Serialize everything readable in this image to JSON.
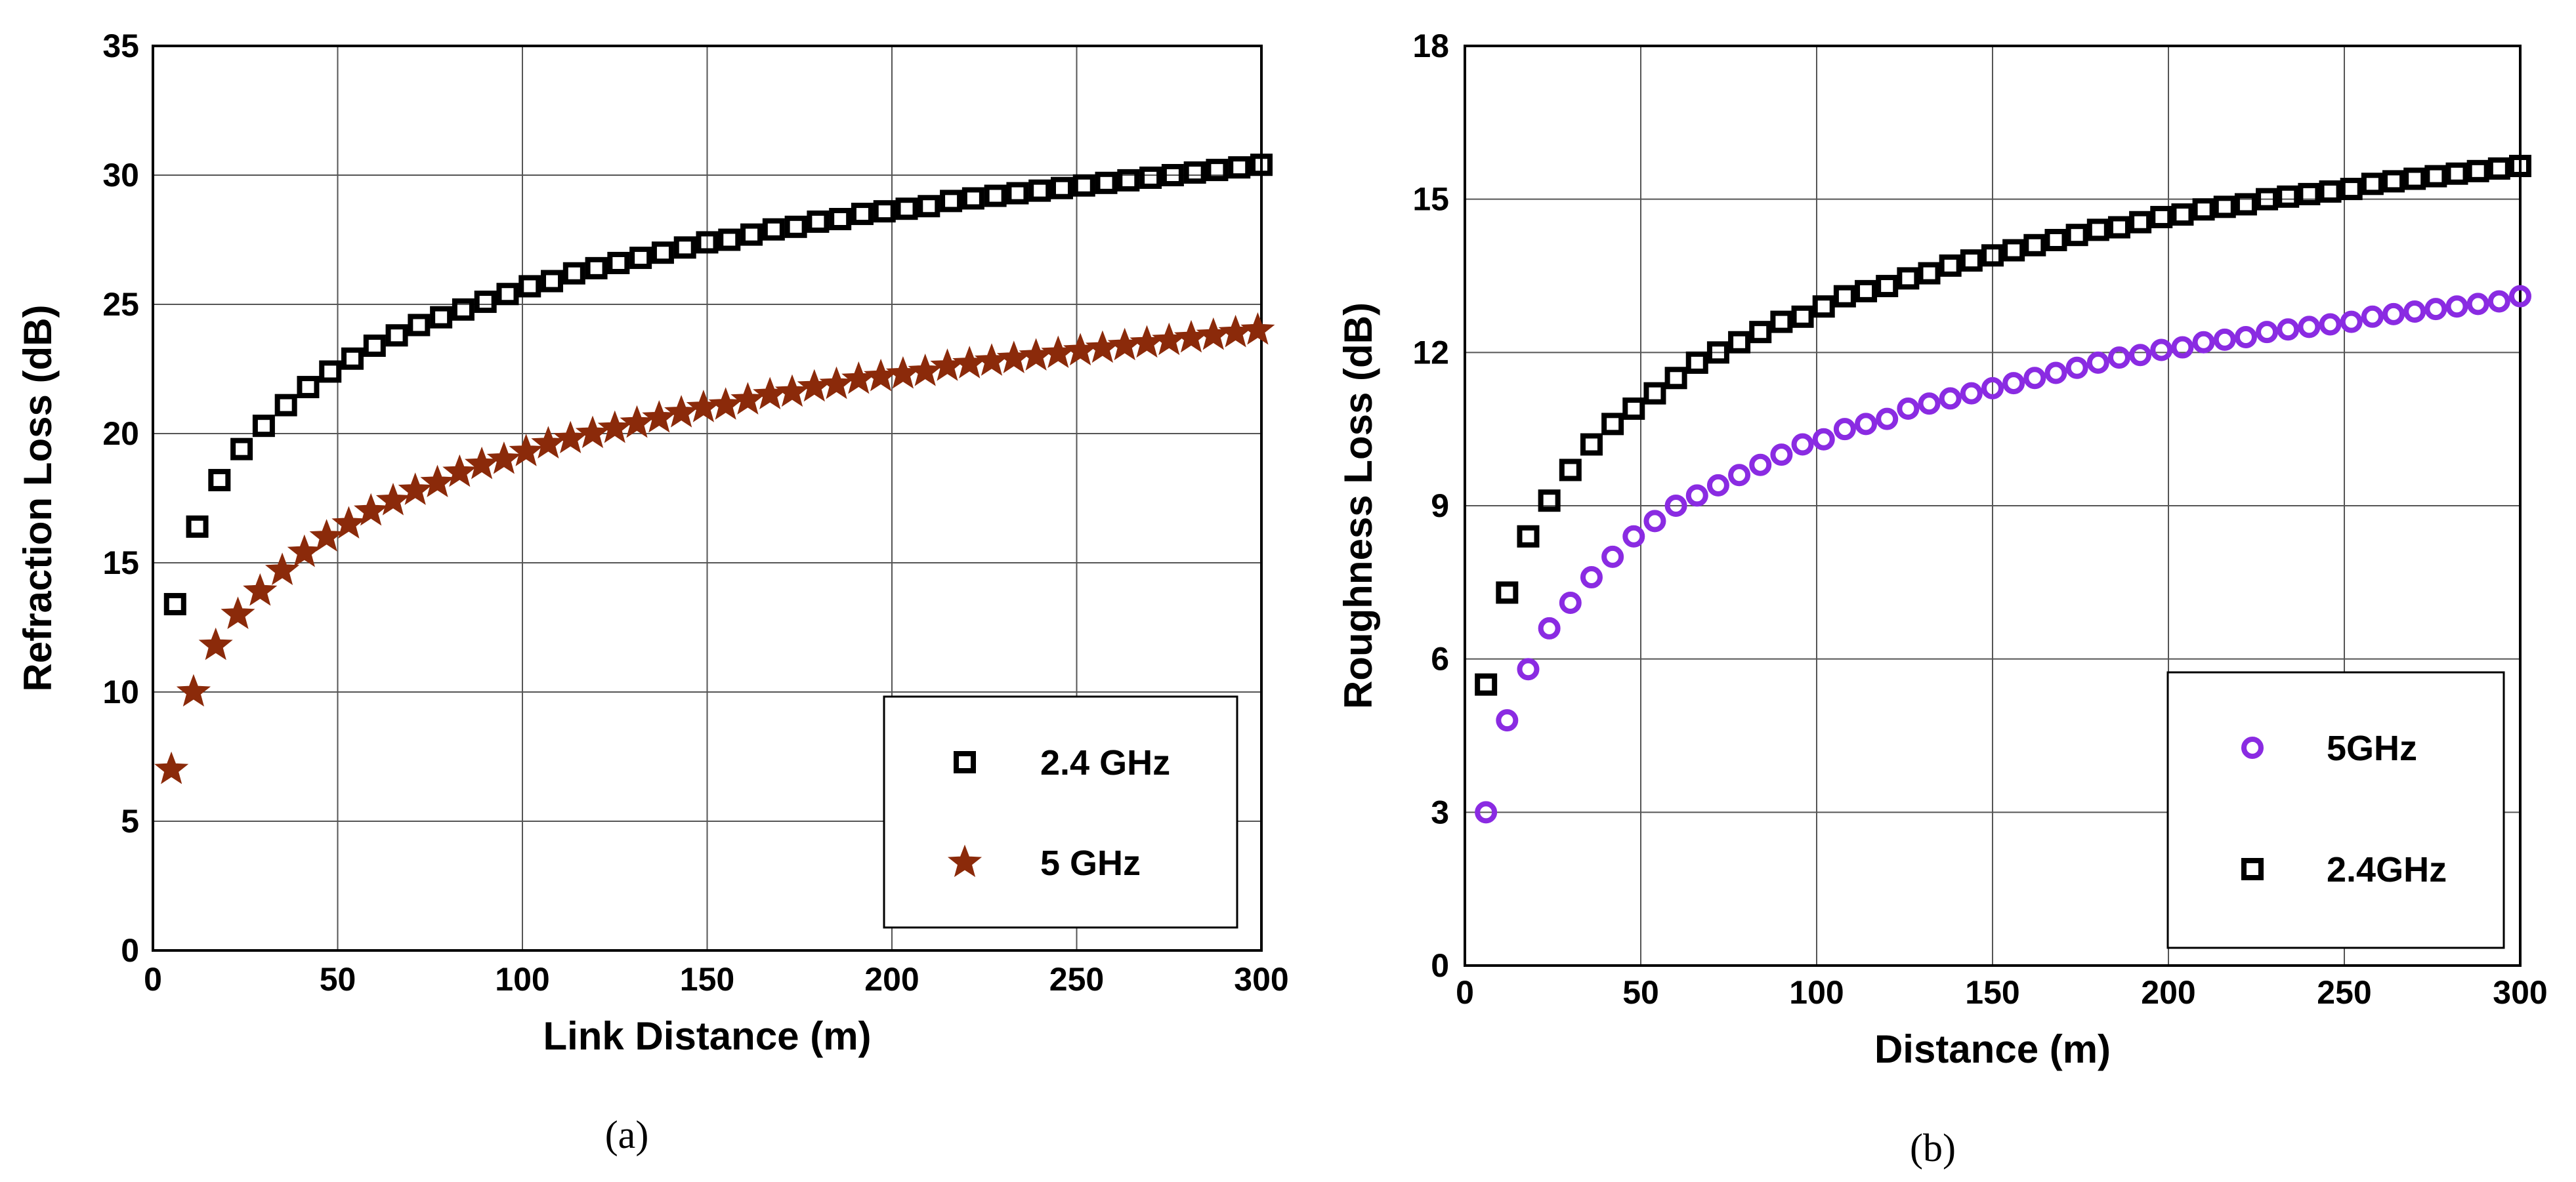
{
  "chart_data": [
    {
      "type": "scatter",
      "panel": "(a)",
      "title": "",
      "xlabel": "Link Distance (m)",
      "ylabel": "Refraction Loss (dB)",
      "xlim": [
        0,
        300
      ],
      "ylim": [
        0,
        35
      ],
      "xticks": [
        "0",
        "50",
        "100",
        "150",
        "200",
        "250",
        "300"
      ],
      "yticks": [
        "0",
        "5",
        "10",
        "15",
        "20",
        "25",
        "30",
        "35"
      ],
      "grid": true,
      "legend_position": "bottom-right",
      "series": [
        {
          "name": "2.4 GHz",
          "marker": "square",
          "color": "#000000",
          "x": [
            6,
            12,
            18,
            24,
            30,
            36,
            42,
            48,
            54,
            60,
            66,
            72,
            78,
            84,
            90,
            96,
            102,
            108,
            114,
            120,
            126,
            132,
            138,
            144,
            150,
            156,
            162,
            168,
            174,
            180,
            186,
            192,
            198,
            204,
            210,
            216,
            222,
            228,
            234,
            240,
            246,
            252,
            258,
            264,
            270,
            276,
            282,
            288,
            294,
            300
          ],
          "y": [
            13.4,
            16.4,
            18.2,
            19.4,
            20.3,
            21.1,
            21.8,
            22.4,
            22.9,
            23.4,
            23.8,
            24.2,
            24.5,
            24.8,
            25.1,
            25.4,
            25.7,
            25.9,
            26.2,
            26.4,
            26.6,
            26.8,
            27.0,
            27.2,
            27.4,
            27.5,
            27.7,
            27.9,
            28.0,
            28.2,
            28.3,
            28.5,
            28.6,
            28.7,
            28.8,
            29.0,
            29.1,
            29.2,
            29.3,
            29.4,
            29.5,
            29.6,
            29.7,
            29.8,
            29.9,
            30.0,
            30.1,
            30.2,
            30.3,
            30.4
          ]
        },
        {
          "name": "5 GHz",
          "marker": "star",
          "color": "#8b2a0a",
          "x": [
            5,
            11,
            17,
            23,
            29,
            35,
            41,
            47,
            53,
            59,
            65,
            71,
            77,
            83,
            89,
            95,
            101,
            107,
            113,
            119,
            125,
            131,
            137,
            143,
            149,
            155,
            161,
            167,
            173,
            179,
            185,
            191,
            197,
            203,
            209,
            215,
            221,
            227,
            233,
            239,
            245,
            251,
            257,
            263,
            269,
            275,
            281,
            287,
            293,
            299
          ],
          "y": [
            7.0,
            10.0,
            11.8,
            13.0,
            13.9,
            14.7,
            15.4,
            16.0,
            16.5,
            17.0,
            17.4,
            17.8,
            18.1,
            18.5,
            18.8,
            19.0,
            19.3,
            19.6,
            19.8,
            20.0,
            20.2,
            20.4,
            20.6,
            20.8,
            21.0,
            21.1,
            21.3,
            21.5,
            21.6,
            21.8,
            21.9,
            22.1,
            22.2,
            22.3,
            22.4,
            22.6,
            22.7,
            22.8,
            22.9,
            23.0,
            23.1,
            23.2,
            23.3,
            23.4,
            23.5,
            23.6,
            23.7,
            23.8,
            23.9,
            24.0
          ]
        }
      ]
    },
    {
      "type": "scatter",
      "panel": "(b)",
      "title": "",
      "xlabel": "Distance (m)",
      "ylabel": "Roughness Loss (dB)",
      "xlim": [
        0,
        300
      ],
      "ylim": [
        0,
        18
      ],
      "xticks": [
        "0",
        "50",
        "100",
        "150",
        "200",
        "250",
        "300"
      ],
      "yticks": [
        "0",
        "3",
        "6",
        "9",
        "12",
        "15",
        "18"
      ],
      "grid": true,
      "legend_position": "bottom-right",
      "series": [
        {
          "name": "5GHz",
          "marker": "circle",
          "color": "#8a2be2",
          "x": [
            6,
            12,
            18,
            24,
            30,
            36,
            42,
            48,
            54,
            60,
            66,
            72,
            78,
            84,
            90,
            96,
            102,
            108,
            114,
            120,
            126,
            132,
            138,
            144,
            150,
            156,
            162,
            168,
            174,
            180,
            186,
            192,
            198,
            204,
            210,
            216,
            222,
            228,
            234,
            240,
            246,
            252,
            258,
            264,
            270,
            276,
            282,
            288,
            294,
            300
          ],
          "y": [
            3.0,
            4.8,
            5.8,
            6.6,
            7.1,
            7.6,
            8.0,
            8.4,
            8.7,
            9.0,
            9.2,
            9.4,
            9.6,
            9.8,
            10.0,
            10.2,
            10.3,
            10.5,
            10.6,
            10.7,
            10.9,
            11.0,
            11.1,
            11.2,
            11.3,
            11.4,
            11.5,
            11.6,
            11.7,
            11.8,
            11.9,
            11.95,
            12.05,
            12.1,
            12.2,
            12.25,
            12.3,
            12.4,
            12.45,
            12.5,
            12.55,
            12.6,
            12.7,
            12.75,
            12.8,
            12.85,
            12.9,
            12.95,
            13.0,
            13.1
          ]
        },
        {
          "name": "2.4GHz",
          "marker": "square",
          "color": "#000000",
          "x": [
            6,
            12,
            18,
            24,
            30,
            36,
            42,
            48,
            54,
            60,
            66,
            72,
            78,
            84,
            90,
            96,
            102,
            108,
            114,
            120,
            126,
            132,
            138,
            144,
            150,
            156,
            162,
            168,
            174,
            180,
            186,
            192,
            198,
            204,
            210,
            216,
            222,
            228,
            234,
            240,
            246,
            252,
            258,
            264,
            270,
            276,
            282,
            288,
            294,
            300
          ],
          "y": [
            5.5,
            7.3,
            8.4,
            9.1,
            9.7,
            10.2,
            10.6,
            10.9,
            11.2,
            11.5,
            11.8,
            12.0,
            12.2,
            12.4,
            12.6,
            12.7,
            12.9,
            13.1,
            13.2,
            13.3,
            13.45,
            13.55,
            13.7,
            13.8,
            13.9,
            14.0,
            14.1,
            14.2,
            14.3,
            14.4,
            14.45,
            14.55,
            14.65,
            14.7,
            14.8,
            14.85,
            14.9,
            15.0,
            15.05,
            15.1,
            15.15,
            15.2,
            15.3,
            15.35,
            15.4,
            15.45,
            15.5,
            15.55,
            15.6,
            15.65
          ]
        }
      ]
    }
  ]
}
